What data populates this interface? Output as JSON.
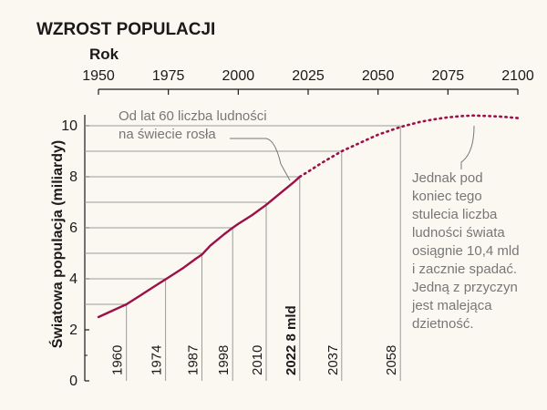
{
  "chart_data": {
    "type": "line",
    "title": "WZROST POPULACJI",
    "xlabel": "Rok",
    "ylabel": "Światowa populacja (miliardy)",
    "x_ticks": [
      1950,
      1975,
      2000,
      2025,
      2050,
      2075,
      2100
    ],
    "xlim": [
      1950,
      2100
    ],
    "y_ticks": [
      0,
      2,
      4,
      6,
      8,
      10
    ],
    "ylim": [
      0,
      11
    ],
    "series": [
      {
        "style": "solid",
        "x": [
          1950,
          1955,
          1960,
          1965,
          1970,
          1975,
          1980,
          1985,
          1987,
          1990,
          1995,
          1998,
          2000,
          2005,
          2010,
          2015,
          2020,
          2022
        ],
        "y": [
          2.5,
          2.75,
          3.0,
          3.35,
          3.7,
          4.05,
          4.4,
          4.8,
          4.95,
          5.3,
          5.75,
          6.0,
          6.15,
          6.5,
          6.9,
          7.35,
          7.8,
          8.0
        ]
      },
      {
        "style": "dotted",
        "x": [
          2022,
          2025,
          2030,
          2037,
          2045,
          2050,
          2058,
          2065,
          2070,
          2075,
          2080,
          2084,
          2090,
          2095,
          2100
        ],
        "y": [
          8.0,
          8.2,
          8.55,
          9.0,
          9.4,
          9.65,
          9.95,
          10.15,
          10.25,
          10.33,
          10.38,
          10.4,
          10.38,
          10.35,
          10.3
        ]
      }
    ],
    "milestones": [
      {
        "year": 1960,
        "value": 3,
        "label": "1960"
      },
      {
        "year": 1974,
        "value": 4,
        "label": "1974"
      },
      {
        "year": 1987,
        "value": 5,
        "label": "1987"
      },
      {
        "year": 1998,
        "value": 6,
        "label": "1998"
      },
      {
        "year": 2010,
        "value": 7,
        "label": "2010"
      },
      {
        "year": 2022,
        "value": 8,
        "label": "2022 8 mld",
        "bold": true
      },
      {
        "year": 2037,
        "value": 9,
        "label": "2037"
      },
      {
        "year": 2058,
        "value": 10,
        "label": "2058"
      }
    ],
    "annotations": [
      {
        "lines": [
          "Od lat 60 liczba ludności",
          "na świecie rosła"
        ]
      },
      {
        "lines": [
          "Jednak pod",
          "koniec tego",
          "stulecia liczba",
          "ludności świata",
          "osiągnie 10,4 mld",
          "i zacznie spadać.",
          "Jedną z przyczyn",
          "jest malejąca",
          "dzietność."
        ]
      }
    ],
    "grid": false,
    "colors": {
      "line": "#9b1048",
      "guide": "#9a9a9a",
      "axis": "#1a1a1a",
      "annotation": "#777777"
    }
  }
}
